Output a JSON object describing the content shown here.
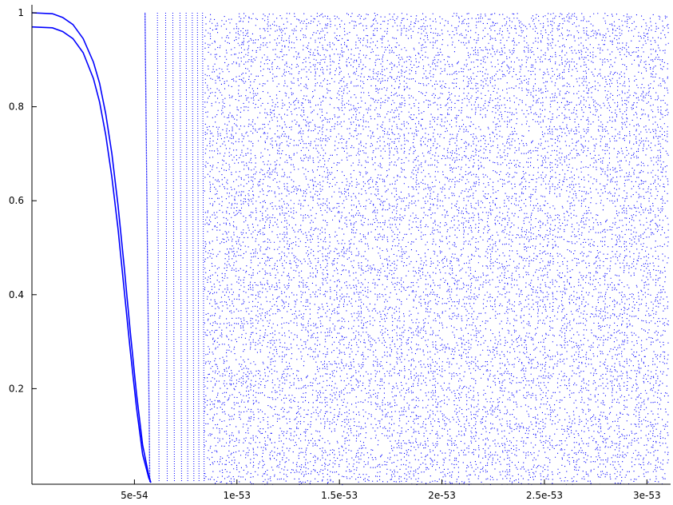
{
  "chart_data": {
    "type": "scatter",
    "title": "",
    "xlabel": "",
    "ylabel": "",
    "xlim": [
      0,
      3.1e-53
    ],
    "ylim": [
      0,
      1
    ],
    "grid": false,
    "x_ticks": [
      {
        "value": 5e-54,
        "label": "5e-54"
      },
      {
        "value": 1e-53,
        "label": "1e-53"
      },
      {
        "value": 1.5e-53,
        "label": "1.5e-53"
      },
      {
        "value": 2e-53,
        "label": "2e-53"
      },
      {
        "value": 2.5e-53,
        "label": "2.5e-53"
      },
      {
        "value": 3e-53,
        "label": "3e-53"
      }
    ],
    "y_ticks": [
      {
        "value": 0.2,
        "label": "0.2"
      },
      {
        "value": 0.4,
        "label": "0.4"
      },
      {
        "value": 0.6,
        "label": "0.6"
      },
      {
        "value": 0.8,
        "label": "0.8"
      },
      {
        "value": 1,
        "label": "1"
      }
    ],
    "series": [
      {
        "color": "#0000ff",
        "style": "line",
        "x": [
          0,
          1e-54,
          1.5e-54,
          2e-54,
          2.5e-54,
          3e-54,
          3.3e-54,
          3.6e-54,
          3.9e-54,
          4.2e-54,
          4.5e-54,
          4.8e-54,
          5.1e-54,
          5.4e-54,
          5.7e-54,
          5.8e-54
        ],
        "y": [
          1,
          0.998,
          0.99,
          0.975,
          0.945,
          0.895,
          0.85,
          0.785,
          0.7,
          0.59,
          0.46,
          0.32,
          0.19,
          0.08,
          0.015,
          0
        ]
      },
      {
        "color": "#0000ff",
        "style": "line",
        "x": [
          0,
          1e-54,
          1.5e-54,
          2e-54,
          2.5e-54,
          3e-54,
          3.3e-54,
          3.6e-54,
          3.9e-54,
          4.2e-54,
          4.5e-54,
          4.8e-54,
          5.1e-54,
          5.4e-54,
          5.7e-54,
          5.8e-54
        ],
        "y": [
          0.97,
          0.968,
          0.96,
          0.945,
          0.915,
          0.86,
          0.81,
          0.74,
          0.65,
          0.54,
          0.41,
          0.28,
          0.16,
          0.06,
          0.01,
          0
        ]
      },
      {
        "color": "#0000ff",
        "style": "dotted-lines",
        "x": [
          5.75e-54,
          6.2e-54,
          6.6e-54,
          6.95e-54,
          7.3e-54,
          7.6e-54,
          7.9e-54,
          8.15e-54,
          8.4e-54
        ],
        "y_range": [
          0,
          1
        ]
      },
      {
        "color": "#0000ff",
        "style": "dense-points",
        "x_range": [
          8.4e-54,
          3.1e-53
        ],
        "y_range": [
          0,
          1
        ]
      }
    ]
  }
}
